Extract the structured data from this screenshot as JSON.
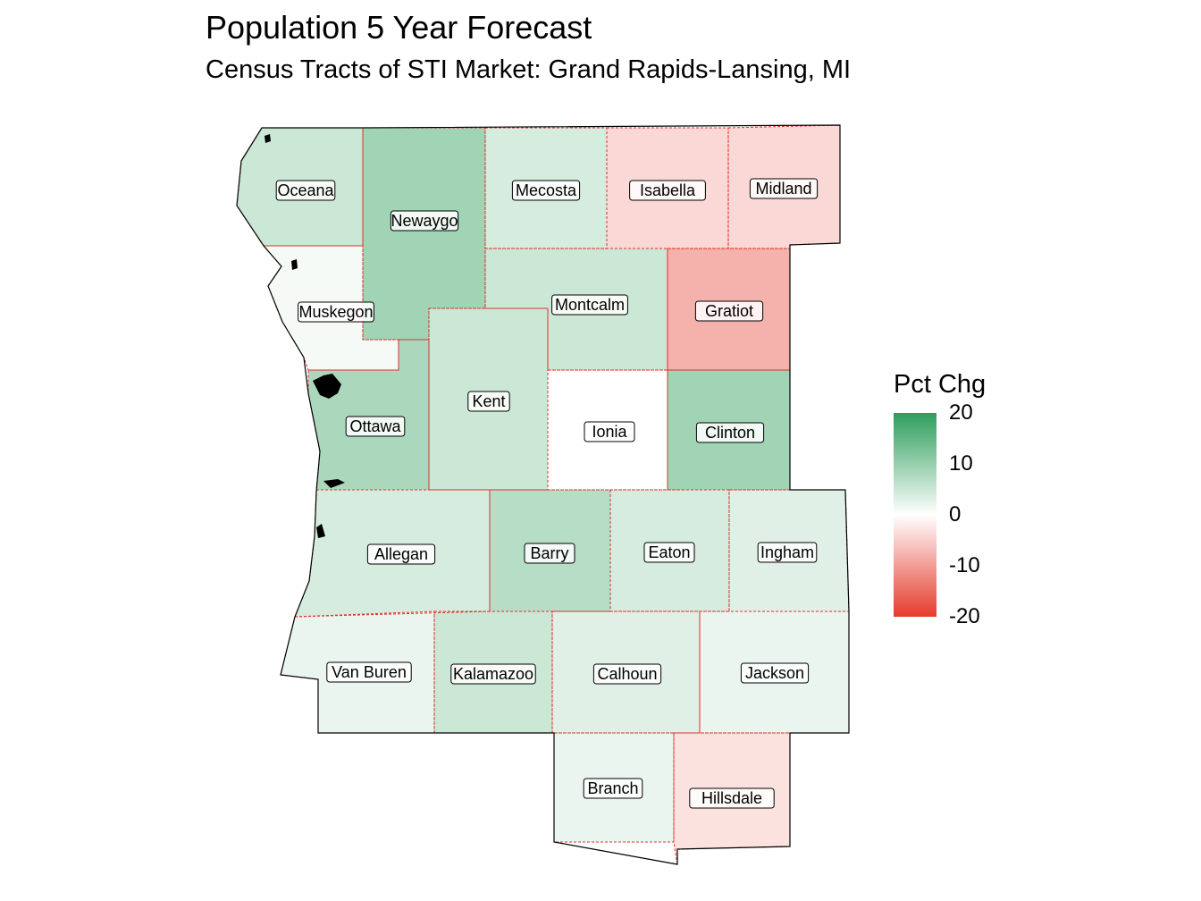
{
  "title": "Population 5 Year Forecast",
  "subtitle": "Census Tracts of STI Market: Grand Rapids-Lansing, MI",
  "legend": {
    "title": "Pct Chg",
    "ticks": [
      "20",
      "10",
      "0",
      "-10",
      "-20"
    ],
    "tick_values": [
      20,
      10,
      0,
      -10,
      -20
    ],
    "colors": {
      "high": "#2e9e5b",
      "mid": "#ffffff",
      "low": "#e53b2c"
    }
  },
  "counties": [
    {
      "name": "Oceana",
      "pct_chg": 5
    },
    {
      "name": "Newaygo",
      "pct_chg": 9
    },
    {
      "name": "Mecosta",
      "pct_chg": 4
    },
    {
      "name": "Isabella",
      "pct_chg": -4
    },
    {
      "name": "Midland",
      "pct_chg": -4
    },
    {
      "name": "Muskegon",
      "pct_chg": 1
    },
    {
      "name": "Montcalm",
      "pct_chg": 5
    },
    {
      "name": "Gratiot",
      "pct_chg": -8
    },
    {
      "name": "Kent",
      "pct_chg": 5
    },
    {
      "name": "Ottawa",
      "pct_chg": 8
    },
    {
      "name": "Ionia",
      "pct_chg": 0
    },
    {
      "name": "Clinton",
      "pct_chg": 9
    },
    {
      "name": "Allegan",
      "pct_chg": 4
    },
    {
      "name": "Barry",
      "pct_chg": 7
    },
    {
      "name": "Eaton",
      "pct_chg": 4
    },
    {
      "name": "Ingham",
      "pct_chg": 3
    },
    {
      "name": "Van Buren",
      "pct_chg": 2
    },
    {
      "name": "Kalamazoo",
      "pct_chg": 5
    },
    {
      "name": "Calhoun",
      "pct_chg": 3
    },
    {
      "name": "Jackson",
      "pct_chg": 2
    },
    {
      "name": "Branch",
      "pct_chg": 2
    },
    {
      "name": "Hillsdale",
      "pct_chg": -3
    }
  ]
}
